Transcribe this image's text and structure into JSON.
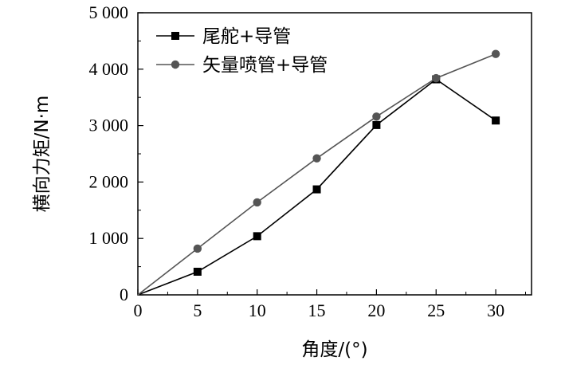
{
  "chart_data": {
    "type": "line",
    "title": "",
    "xlabel": "角度/(°)",
    "ylabel": "横向力矩/N·m",
    "xlim": [
      0,
      33
    ],
    "ylim": [
      0,
      5000
    ],
    "x_ticks": [
      0,
      5,
      10,
      15,
      20,
      25,
      30
    ],
    "x_tick_labels": [
      "0",
      "5",
      "10",
      "15",
      "20",
      "25",
      "30"
    ],
    "y_ticks": [
      0,
      1000,
      2000,
      3000,
      4000,
      5000
    ],
    "y_tick_labels": [
      "0",
      "1 000",
      "2 000",
      "3 000",
      "4 000",
      "5 000"
    ],
    "grid": false,
    "legend_position": "top-left",
    "x": [
      0,
      5,
      10,
      15,
      20,
      25,
      30
    ],
    "series": [
      {
        "name": "尾舵+导管",
        "marker": "square",
        "color": "#000000",
        "values": [
          0,
          410,
          1040,
          1870,
          3010,
          3820,
          3090
        ]
      },
      {
        "name": "矢量喷管+导管",
        "marker": "circle",
        "color": "#555555",
        "values": [
          0,
          820,
          1640,
          2420,
          3160,
          3840,
          4270
        ]
      }
    ]
  }
}
